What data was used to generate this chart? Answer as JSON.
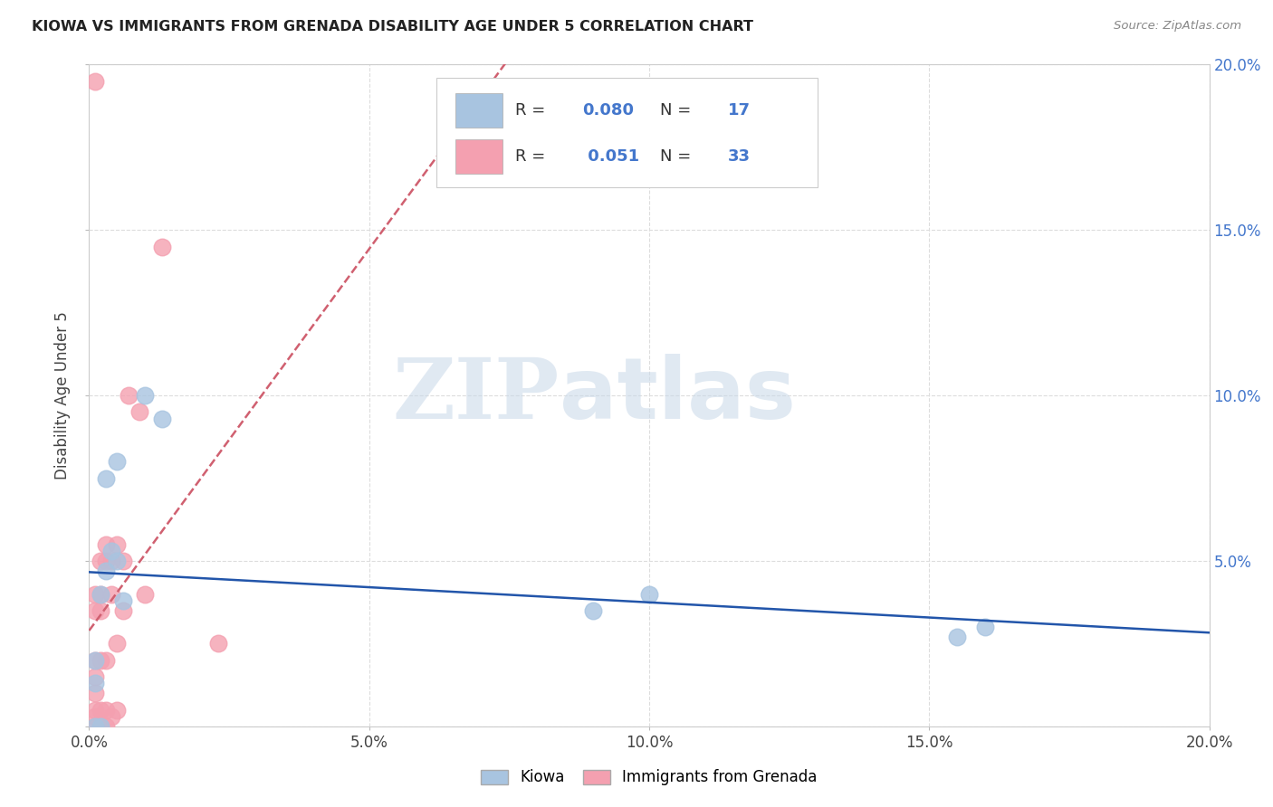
{
  "title": "KIOWA VS IMMIGRANTS FROM GRENADA DISABILITY AGE UNDER 5 CORRELATION CHART",
  "source": "Source: ZipAtlas.com",
  "ylabel": "Disability Age Under 5",
  "xlim": [
    0.0,
    0.2
  ],
  "ylim": [
    0.0,
    0.2
  ],
  "xticks": [
    0.0,
    0.05,
    0.1,
    0.15,
    0.2
  ],
  "yticks": [
    0.0,
    0.05,
    0.1,
    0.15,
    0.2
  ],
  "xtick_labels": [
    "0.0%",
    "5.0%",
    "10.0%",
    "15.0%",
    "20.0%"
  ],
  "right_ytick_labels": [
    "",
    "5.0%",
    "10.0%",
    "15.0%",
    "20.0%"
  ],
  "kiowa_color": "#a8c4e0",
  "grenada_color": "#f4a0b0",
  "kiowa_line_color": "#2255aa",
  "grenada_line_color": "#d06070",
  "kiowa_R": 0.08,
  "kiowa_N": 17,
  "grenada_R": 0.051,
  "grenada_N": 33,
  "kiowa_points_x": [
    0.001,
    0.001,
    0.001,
    0.002,
    0.002,
    0.003,
    0.003,
    0.004,
    0.005,
    0.005,
    0.006,
    0.01,
    0.013,
    0.09,
    0.1,
    0.155,
    0.16
  ],
  "kiowa_points_y": [
    0.0,
    0.013,
    0.02,
    0.0,
    0.04,
    0.047,
    0.075,
    0.053,
    0.05,
    0.08,
    0.038,
    0.1,
    0.093,
    0.035,
    0.04,
    0.027,
    0.03
  ],
  "grenada_points_x": [
    0.001,
    0.001,
    0.001,
    0.001,
    0.001,
    0.001,
    0.001,
    0.001,
    0.001,
    0.002,
    0.002,
    0.002,
    0.002,
    0.002,
    0.002,
    0.003,
    0.003,
    0.003,
    0.003,
    0.003,
    0.004,
    0.004,
    0.004,
    0.005,
    0.005,
    0.005,
    0.006,
    0.006,
    0.007,
    0.009,
    0.01,
    0.013,
    0.023
  ],
  "grenada_points_y": [
    0.0,
    0.003,
    0.005,
    0.01,
    0.015,
    0.02,
    0.035,
    0.04,
    0.195,
    0.0,
    0.005,
    0.02,
    0.035,
    0.04,
    0.05,
    0.0,
    0.005,
    0.02,
    0.05,
    0.055,
    0.003,
    0.04,
    0.05,
    0.005,
    0.025,
    0.055,
    0.035,
    0.05,
    0.1,
    0.095,
    0.04,
    0.145,
    0.025
  ],
  "watermark_zip": "ZIP",
  "watermark_atlas": "atlas",
  "background_color": "#ffffff",
  "grid_color": "#dddddd",
  "legend_r_color": "#4477cc",
  "legend_n_color": "#4477cc"
}
